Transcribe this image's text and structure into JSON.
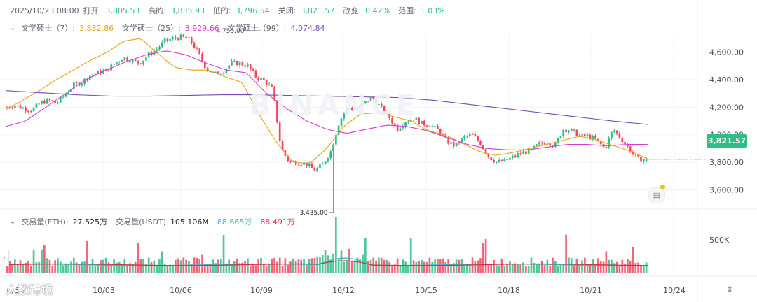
{
  "header": {
    "date": "2025/10/23 08:00",
    "open_label": "打开:",
    "open": "3,805.53",
    "high_label": "高的:",
    "high": "3,835.93",
    "low_label": "低的:",
    "low": "3,796.54",
    "close_label": "关闭:",
    "close": "3,821.57",
    "change_label": "改变:",
    "change": "0.42%",
    "range_label": "范围:",
    "range": "1.03%"
  },
  "ma_legend": {
    "ma7_label": "文学硕士（7）:",
    "ma7": "3,832.86",
    "ma25_label": "文学硕士（25）:",
    "ma25": "3,929.66",
    "ma99_label": "文学硕士（99）:",
    "ma99": "4,074.84"
  },
  "volume_legend": {
    "eth_label": "交易量(ETH):",
    "eth": "27.525万",
    "usdt_label": "交易量(USDT)",
    "usdt": "105.106M",
    "vma1": "88.665万",
    "vma2": "88.491万"
  },
  "current_price": "3,821.57",
  "watermark": "大数跨境",
  "logo_watermark": "BINANCE",
  "colors": {
    "up": "#2ebd85",
    "down": "#f6465d",
    "ma7": "#e8a317",
    "ma25": "#d63ad1",
    "ma99": "#7a4bb0",
    "vma1": "#3bb5c9",
    "vma2": "#c8324a"
  },
  "chart_data": {
    "type": "candlestick",
    "price_axis": {
      "ticks": [
        3600,
        3800,
        4000,
        4200,
        4400,
        4600
      ],
      "tick_labels": [
        "3,600.00",
        "3,800.00",
        "4,000.00",
        "4,200.00",
        "4,400.00",
        "4,600.00"
      ],
      "ylim": [
        3420,
        4780
      ]
    },
    "volume_axis": {
      "ticks": [
        500000
      ],
      "tick_labels": [
        "500K"
      ],
      "ylim": [
        0,
        900000
      ]
    },
    "x_axis": {
      "tick_labels": [
        "10/03",
        "10/06",
        "10/09",
        "10/12",
        "10/15",
        "10/18",
        "10/21",
        "10/24"
      ],
      "first_label_partial": "0/30"
    },
    "annotations": {
      "max_label": "4,755.00",
      "max_value": 4755,
      "min_label": "3,435.00",
      "min_value": 3435
    },
    "ohlc_anchors_close": [
      4200,
      4215,
      4190,
      4180,
      4230,
      4250,
      4230,
      4290,
      4360,
      4380,
      4430,
      4450,
      4470,
      4520,
      4560,
      4540,
      4520,
      4580,
      4620,
      4680,
      4700,
      4710,
      4690,
      4600,
      4480,
      4440,
      4460,
      4520,
      4520,
      4500,
      4420,
      4390,
      4330,
      3900,
      3800,
      3800,
      3790,
      3740,
      3780,
      3880,
      4090,
      4200,
      4180,
      4230,
      4270,
      4200,
      4130,
      4040,
      4100,
      4120,
      4080,
      4070,
      4030,
      3950,
      3920,
      3980,
      4000,
      3940,
      3840,
      3800,
      3810,
      3840,
      3870,
      3880,
      3930,
      3950,
      3920,
      4040,
      4030,
      3990,
      3990,
      3960,
      3900,
      4040,
      3970,
      3890,
      3820,
      3822
    ],
    "ma_lines": [
      {
        "name": "MA7",
        "anchors": [
          4180,
          4250,
          4320,
          4400,
          4470,
          4540,
          4600,
          4680,
          4700,
          4590,
          4490,
          4470,
          4470,
          4420,
          4380,
          4150,
          3950,
          3800,
          3790,
          3900,
          4060,
          4150,
          4160,
          4130,
          4100,
          4030,
          4000,
          3940,
          3880,
          3850,
          3870,
          3900,
          3930,
          3960,
          3990,
          3960,
          3920,
          3880,
          3825
        ]
      },
      {
        "name": "MA25",
        "anchors": [
          4060,
          4100,
          4200,
          4300,
          4400,
          4470,
          4530,
          4580,
          4610,
          4580,
          4520,
          4470,
          4450,
          4300,
          4190,
          4100,
          4040,
          4010,
          4040,
          4070,
          4060,
          4030,
          3980,
          3930,
          3900,
          3890,
          3890,
          3910,
          3930,
          3930,
          3920,
          3930,
          3929
        ]
      },
      {
        "name": "MA99",
        "anchors": [
          4320,
          4305,
          4290,
          4280,
          4280,
          4285,
          4290,
          4290,
          4285,
          4280,
          4275,
          4270,
          4250,
          4220,
          4190,
          4160,
          4130,
          4100,
          4075
        ]
      }
    ]
  }
}
